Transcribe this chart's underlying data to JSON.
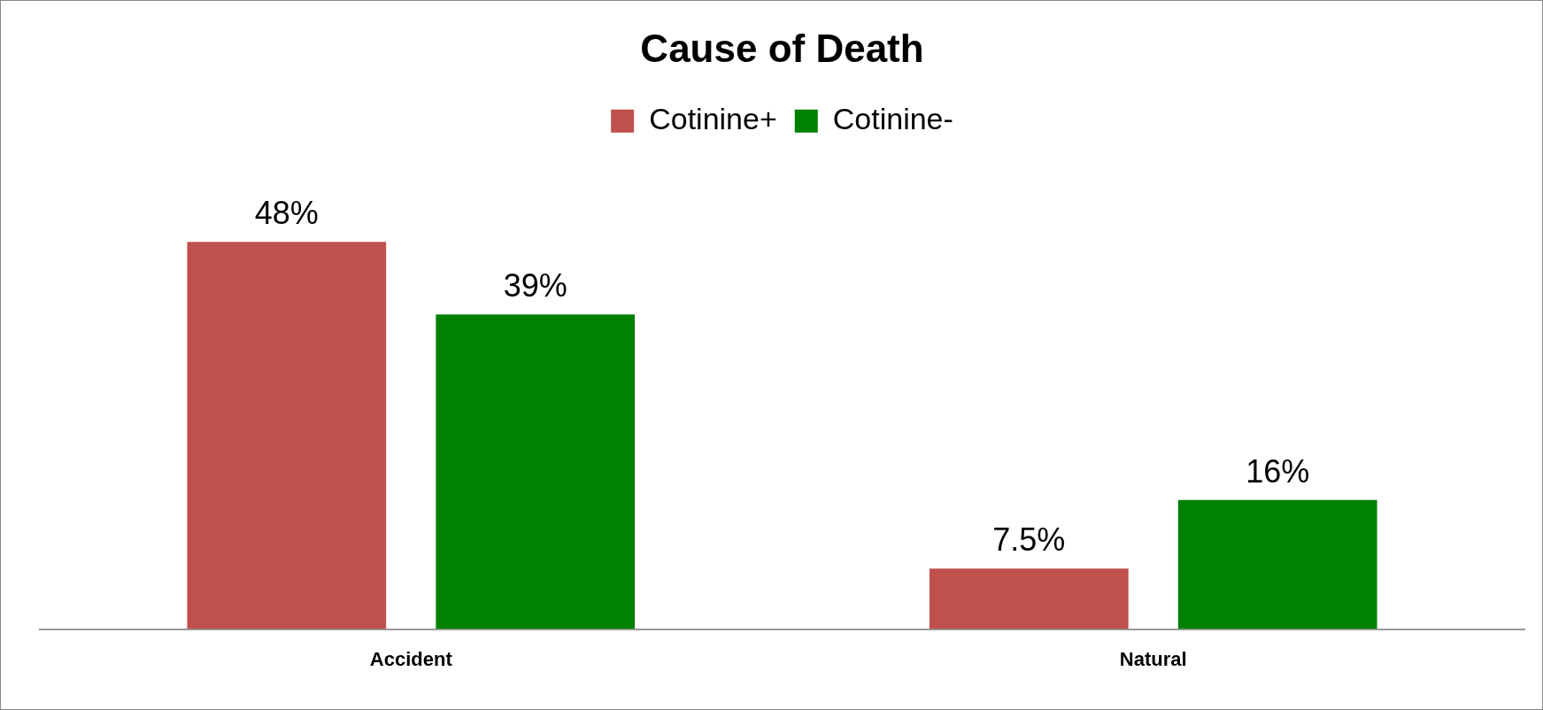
{
  "chart_data": {
    "type": "bar",
    "title": "Cause of Death",
    "categories": [
      "Accident",
      "Natural"
    ],
    "series": [
      {
        "name": "Cotinine+",
        "color": "#c0504d",
        "values": [
          48,
          7.5
        ],
        "value_labels": [
          "48%",
          "7.5%"
        ]
      },
      {
        "name": "Cotinine-",
        "color": "#008000",
        "values": [
          39,
          16
        ],
        "value_labels": [
          "39%",
          "16%"
        ]
      }
    ],
    "legend": "top",
    "grid": false
  }
}
